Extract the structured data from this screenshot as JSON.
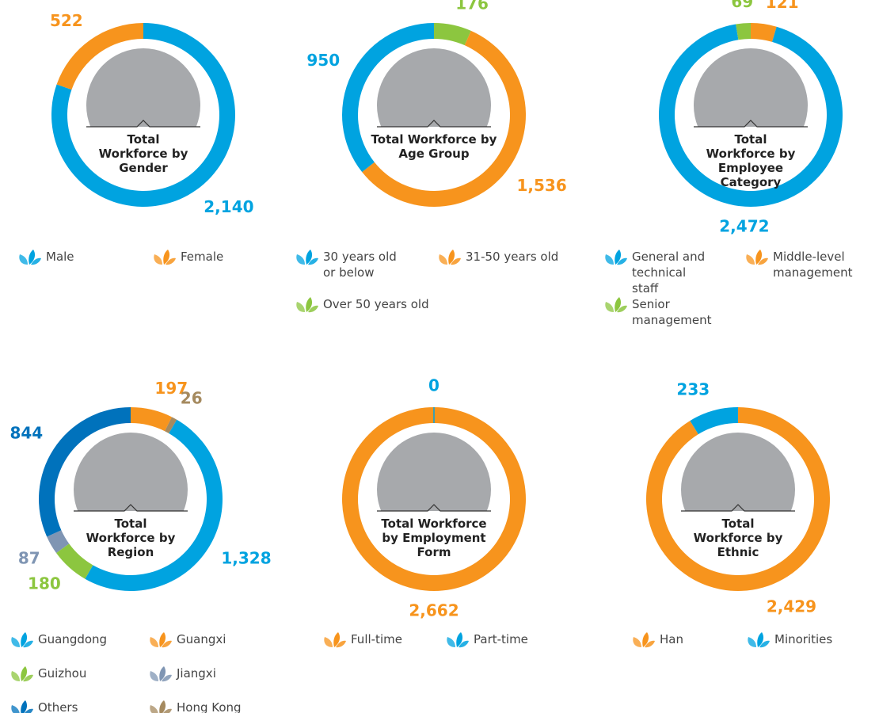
{
  "chart_data": [
    {
      "type": "pie",
      "title": "Total Workforce by Gender",
      "categories": [
        "Male",
        "Female"
      ],
      "values": [
        2140,
        522
      ],
      "value_labels": [
        "2,140",
        "522"
      ],
      "colors": [
        "#00a3e0",
        "#f7941d"
      ]
    },
    {
      "type": "pie",
      "title": "Total Workforce by Age Group",
      "categories": [
        "Over 50 years old",
        "31-50 years old",
        "30 years old or below"
      ],
      "values": [
        176,
        1536,
        950
      ],
      "value_labels": [
        "176",
        "1,536",
        "950"
      ],
      "colors": [
        "#8cc63f",
        "#f7941d",
        "#00a3e0"
      ]
    },
    {
      "type": "pie",
      "title": "Total Workforce by Employee Category",
      "categories": [
        "Middle-level management",
        "General and technical staff",
        "Senior management"
      ],
      "values": [
        121,
        2472,
        69
      ],
      "value_labels": [
        "121",
        "2,472",
        "69"
      ],
      "colors": [
        "#f7941d",
        "#00a3e0",
        "#8cc63f"
      ]
    },
    {
      "type": "pie",
      "title": "Total Workforce by Region",
      "categories": [
        "Guangxi",
        "Hong Kong",
        "Guangdong",
        "Guizhou",
        "Jiangxi",
        "Others"
      ],
      "values": [
        197,
        26,
        1328,
        180,
        87,
        844
      ],
      "value_labels": [
        "197",
        "26",
        "1,328",
        "180",
        "87",
        "844"
      ],
      "colors": [
        "#f7941d",
        "#a58a5f",
        "#00a3e0",
        "#8cc63f",
        "#7f95b3",
        "#0072bc"
      ]
    },
    {
      "type": "pie",
      "title": "Total Workforce by Employment Form",
      "categories": [
        "Full-time",
        "Part-time"
      ],
      "values": [
        2662,
        0
      ],
      "value_labels": [
        "2,662",
        "0"
      ],
      "colors": [
        "#f7941d",
        "#00a3e0"
      ]
    },
    {
      "type": "pie",
      "title": "Total Workforce by Ethnic",
      "categories": [
        "Han",
        "Minorities"
      ],
      "values": [
        2429,
        233
      ],
      "value_labels": [
        "2,429",
        "233"
      ],
      "colors": [
        "#f7941d",
        "#00a3e0"
      ]
    }
  ]
}
